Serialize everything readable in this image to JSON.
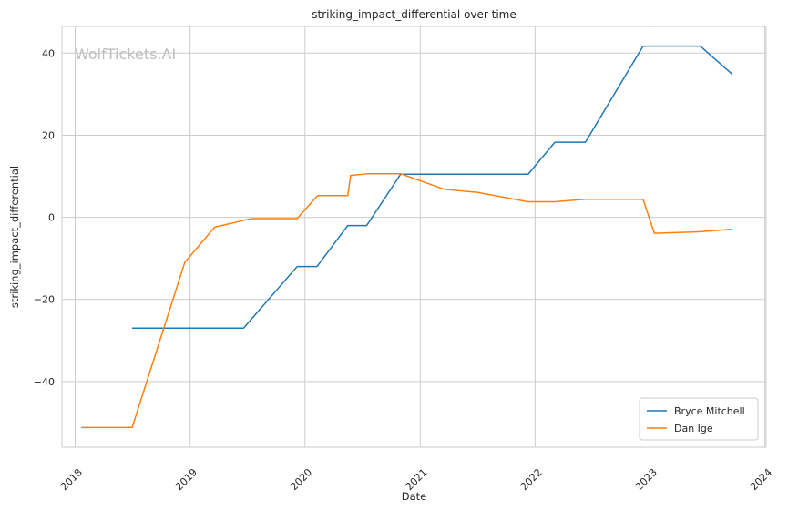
{
  "chart_data": {
    "type": "line",
    "title": "striking_impact_differential over time",
    "xlabel": "Date",
    "ylabel": "striking_impact_differential",
    "watermark": "WolfTickets.AI",
    "x_ticks": [
      "2018",
      "2019",
      "2020",
      "2021",
      "2022",
      "2023",
      "2024"
    ],
    "y_ticks": [
      40,
      20,
      0,
      -20,
      -40
    ],
    "y_tick_labels": [
      "40",
      "20",
      "0",
      "−20",
      "−40"
    ],
    "xlim": [
      "2017-11-20",
      "2024-01-05"
    ],
    "ylim": [
      -56,
      46.5
    ],
    "grid": true,
    "legend_position": "bottom-right",
    "series": [
      {
        "name": "Bryce Mitchell",
        "color": "#1f77b4",
        "points": [
          [
            "2018-07-01",
            -27
          ],
          [
            "2019-06-20",
            -27
          ],
          [
            "2019-12-07",
            -12
          ],
          [
            "2020-02-08",
            -12
          ],
          [
            "2020-05-16",
            -2
          ],
          [
            "2020-07-15",
            -2
          ],
          [
            "2020-10-31",
            10.5
          ],
          [
            "2021-12-10",
            10.5
          ],
          [
            "2022-03-05",
            18.3
          ],
          [
            "2022-06-10",
            18.3
          ],
          [
            "2022-12-10",
            41.7
          ],
          [
            "2023-06-10",
            41.7
          ],
          [
            "2023-09-20",
            34.8
          ]
        ]
      },
      {
        "name": "Dan Ige",
        "color": "#ff7f0e",
        "points": [
          [
            "2018-01-20",
            -51.2
          ],
          [
            "2018-07-01",
            -51.2
          ],
          [
            "2018-12-15",
            -11
          ],
          [
            "2019-03-20",
            -2.4
          ],
          [
            "2019-07-15",
            -0.3
          ],
          [
            "2019-12-07",
            -0.3
          ],
          [
            "2020-02-10",
            5.3
          ],
          [
            "2020-05-16",
            5.3
          ],
          [
            "2020-05-25",
            10.2
          ],
          [
            "2020-07-15",
            10.6
          ],
          [
            "2020-10-31",
            10.6
          ],
          [
            "2021-03-20",
            6.8
          ],
          [
            "2021-07-01",
            6.1
          ],
          [
            "2021-12-10",
            3.8
          ],
          [
            "2022-03-05",
            3.8
          ],
          [
            "2022-06-10",
            4.4
          ],
          [
            "2022-12-10",
            4.4
          ],
          [
            "2023-01-15",
            -3.9
          ],
          [
            "2023-06-10",
            -3.5
          ],
          [
            "2023-09-20",
            -2.9
          ]
        ]
      }
    ]
  }
}
